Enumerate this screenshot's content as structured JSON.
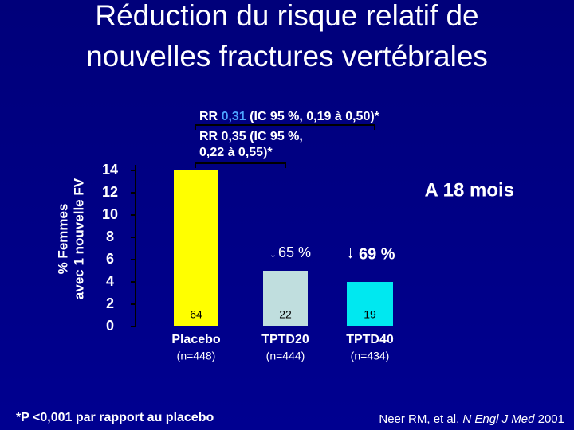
{
  "chart_data": {
    "type": "bar",
    "title_lines": [
      "Réduction du risque relatif de",
      "nouvelles fractures vertébrales"
    ],
    "y_label_lines": [
      "% Femmes",
      "avec 1 nouvelle FV"
    ],
    "categories": [
      "Placebo",
      "TPTD20",
      "TPTD40"
    ],
    "n_labels": [
      "(n=448)",
      "(n=444)",
      "(n=434)"
    ],
    "values": [
      14,
      5,
      4
    ],
    "counts": [
      64,
      22,
      19
    ],
    "colors": [
      "#ffff00",
      "#c0dede",
      "#00e8f0"
    ],
    "ylim": [
      0,
      14
    ],
    "yticks": [
      0,
      2,
      4,
      6,
      8,
      10,
      12,
      14
    ],
    "reductions": [
      "65 %",
      "69 %"
    ],
    "period": "A 18 mois",
    "rr1": {
      "prefix": "RR ",
      "value": "0,31",
      "suffix": " (IC 95 %, 0,19 à 0,50)*"
    },
    "rr2_lines": [
      "RR 0,35 (IC 95 %,",
      "0,22 à 0,55)*"
    ],
    "footnote": "*P <0,001 par rapport au placebo",
    "citation": {
      "authors": "Neer RM, et al. ",
      "journal": "N Engl J Med",
      "year": " 2001"
    }
  }
}
